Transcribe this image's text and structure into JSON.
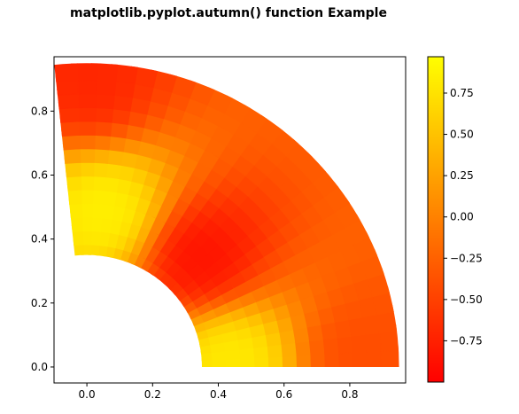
{
  "chart_data": {
    "type": "heatmap",
    "title": "matplotlib.pyplot.autumn() function Example",
    "xlabel": "",
    "ylabel": "",
    "colormap": "autumn",
    "colormap_endpoints": [
      "#ff0000",
      "#ffff00"
    ],
    "xlim": [
      -0.1,
      0.97
    ],
    "ylim": [
      -0.05,
      0.97
    ],
    "x_ticks": [
      0.0,
      0.2,
      0.4,
      0.6,
      0.8
    ],
    "x_tick_labels": [
      "0.0",
      "0.2",
      "0.4",
      "0.6",
      "0.8"
    ],
    "y_ticks": [
      0.0,
      0.2,
      0.4,
      0.6,
      0.8
    ],
    "y_tick_labels": [
      "0.0",
      "0.2",
      "0.4",
      "0.6",
      "0.8"
    ],
    "colorbar": {
      "range": [
        -1.0,
        0.97
      ],
      "ticks": [
        0.75,
        0.5,
        0.25,
        0.0,
        -0.25,
        -0.5,
        -0.75
      ],
      "tick_labels": [
        "0.75",
        "0.50",
        "0.25",
        "0.00",
        "−0.25",
        "−0.50",
        "−0.75"
      ]
    },
    "domain": {
      "shape": "annular sector",
      "inner_radius": 0.35,
      "outer_radius": 0.95,
      "angle_start_deg": 0,
      "angle_end_deg": 96
    },
    "value_regions": [
      {
        "x": 0.05,
        "y": 0.5,
        "value": 0.85
      },
      {
        "x": 0.45,
        "y": 0.03,
        "value": 0.8
      },
      {
        "x": 0.35,
        "y": 0.35,
        "value": -0.85
      },
      {
        "x": 0.0,
        "y": 0.9,
        "value": -0.7
      },
      {
        "x": 0.85,
        "y": 0.05,
        "value": -0.4
      }
    ],
    "grid": false,
    "legend": "none"
  }
}
